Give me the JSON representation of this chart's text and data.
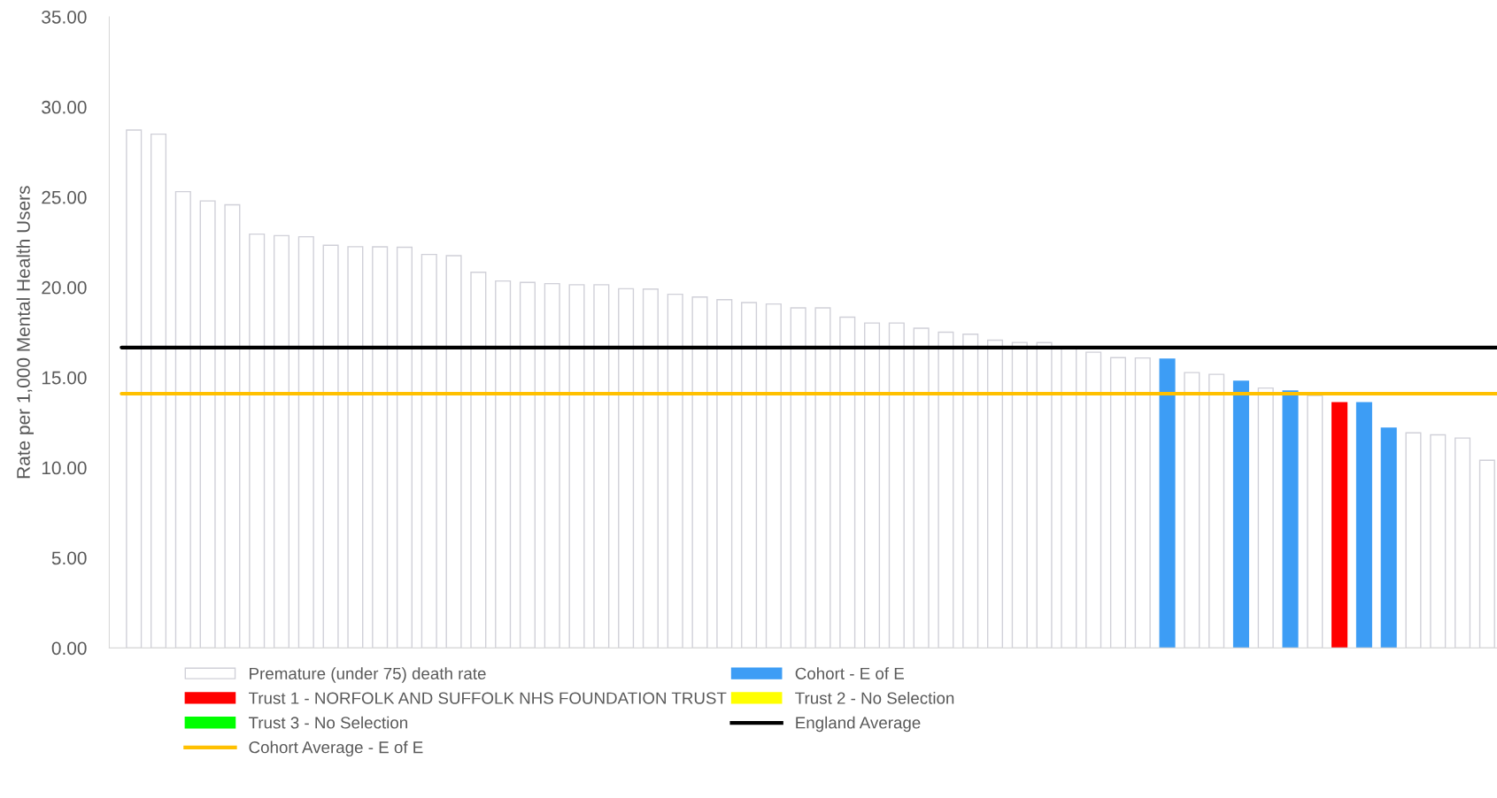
{
  "chart_data": {
    "type": "bar",
    "ylabel": "Rate per 1,000 Mental Health Users",
    "categories": [
      null,
      null,
      null,
      null,
      null,
      null,
      null,
      null,
      null,
      null,
      null,
      null,
      null,
      null,
      null,
      null,
      null,
      null,
      null,
      null,
      null,
      null,
      null,
      null,
      null,
      null,
      null,
      null,
      null,
      null,
      null,
      null,
      null,
      null,
      null,
      null,
      null,
      null,
      null,
      null,
      null,
      null,
      null,
      null,
      null,
      null,
      null,
      null,
      null,
      null,
      null,
      null,
      null,
      null,
      null,
      null
    ],
    "series": [
      {
        "name": "Premature (under 75) death rate",
        "color": "#ffffff",
        "values": [
          28.72,
          28.49,
          25.3,
          24.79,
          24.57,
          22.95,
          22.86,
          22.8,
          22.33,
          22.25,
          22.24,
          22.22,
          21.82,
          21.75,
          20.83,
          20.35,
          20.27,
          20.2,
          20.14,
          20.14,
          19.92,
          19.9,
          19.61,
          19.46,
          19.31,
          19.15,
          19.07,
          18.86,
          18.86,
          18.34,
          18.02,
          18.02,
          17.73,
          17.51,
          17.4,
          17.07,
          16.94,
          16.93,
          16.6,
          16.4,
          16.1,
          16.08,
          null,
          15.27,
          15.17,
          null,
          14.41,
          null,
          14.0,
          null,
          null,
          null,
          11.93,
          11.82,
          11.64,
          10.41
        ]
      },
      {
        "name": "Cohort - E of E",
        "color": "#3d9df5",
        "values": [
          null,
          null,
          null,
          null,
          null,
          null,
          null,
          null,
          null,
          null,
          null,
          null,
          null,
          null,
          null,
          null,
          null,
          null,
          null,
          null,
          null,
          null,
          null,
          null,
          null,
          null,
          null,
          null,
          null,
          null,
          null,
          null,
          null,
          null,
          null,
          null,
          null,
          null,
          null,
          null,
          null,
          null,
          16.01,
          null,
          null,
          14.79,
          null,
          14.25,
          null,
          null,
          13.6,
          12.19,
          null,
          null,
          null,
          null
        ]
      },
      {
        "name": "Trust 1 - NORFOLK AND SUFFOLK NHS FOUNDATION TRUST",
        "color": "#ff0000",
        "values": [
          null,
          null,
          null,
          null,
          null,
          null,
          null,
          null,
          null,
          null,
          null,
          null,
          null,
          null,
          null,
          null,
          null,
          null,
          null,
          null,
          null,
          null,
          null,
          null,
          null,
          null,
          null,
          null,
          null,
          null,
          null,
          null,
          null,
          null,
          null,
          null,
          null,
          null,
          null,
          null,
          null,
          null,
          null,
          null,
          null,
          null,
          null,
          null,
          null,
          13.6,
          null,
          null,
          null,
          null,
          null,
          null
        ]
      },
      {
        "name": "Trust 2 - No Selection",
        "color": "#ffff00",
        "values": [
          null,
          null,
          null,
          null,
          null,
          null,
          null,
          null,
          null,
          null,
          null,
          null,
          null,
          null,
          null,
          null,
          null,
          null,
          null,
          null,
          null,
          null,
          null,
          null,
          null,
          null,
          null,
          null,
          null,
          null,
          null,
          null,
          null,
          null,
          null,
          null,
          null,
          null,
          null,
          null,
          null,
          null,
          null,
          null,
          null,
          null,
          null,
          null,
          null,
          null,
          null,
          null,
          null,
          null,
          null,
          null
        ]
      },
      {
        "name": "Trust 3 - No Selection",
        "color": "#00ff00",
        "values": [
          null,
          null,
          null,
          null,
          null,
          null,
          null,
          null,
          null,
          null,
          null,
          null,
          null,
          null,
          null,
          null,
          null,
          null,
          null,
          null,
          null,
          null,
          null,
          null,
          null,
          null,
          null,
          null,
          null,
          null,
          null,
          null,
          null,
          null,
          null,
          null,
          null,
          null,
          null,
          null,
          null,
          null,
          null,
          null,
          null,
          null,
          null,
          null,
          null,
          null,
          null,
          null,
          null,
          null,
          null,
          null
        ]
      }
    ],
    "ref_lines": [
      {
        "axis": "y",
        "value": 16.66,
        "label": "England Average",
        "color": "#000000"
      },
      {
        "axis": "y",
        "value": 14.1,
        "label": "Cohort Average - E of E",
        "color": "#ffc000"
      }
    ],
    "ylim": [
      0,
      35
    ],
    "yticks": [
      {
        "value": 0,
        "label": "0.00"
      },
      {
        "value": 5,
        "label": "5.00"
      },
      {
        "value": 10,
        "label": "10.00"
      },
      {
        "value": 15,
        "label": "15.00"
      },
      {
        "value": 20,
        "label": "20.00"
      },
      {
        "value": 25,
        "label": "25.00"
      },
      {
        "value": 30,
        "label": "30.00"
      },
      {
        "value": 35,
        "label": "35.00"
      }
    ],
    "grid": false,
    "legend": "bottom"
  }
}
